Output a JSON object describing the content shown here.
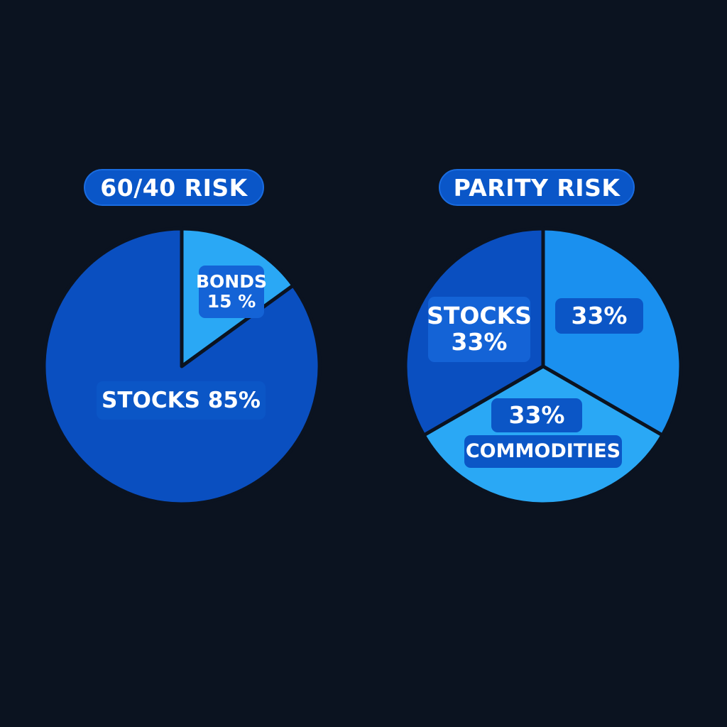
{
  "colors": {
    "background": "#0b1320",
    "dark_blue": "#0a4fc0",
    "light_blue": "#2aa8f5",
    "mid_blue": "#1a90ef",
    "label_box": "#0b56c6"
  },
  "chart_data": [
    {
      "type": "pie",
      "title": "60/40 RISK",
      "slices": [
        {
          "name": "BONDS",
          "label": "BONDS",
          "value_label": "15 %",
          "value": 15,
          "color": "#2aa8f5"
        },
        {
          "name": "STOCKS",
          "label": "STOCKS 85%",
          "value": 85,
          "color": "#0a4fc0"
        }
      ]
    },
    {
      "type": "pie",
      "title": "PARITY RISK",
      "slices": [
        {
          "name": "",
          "label": "33%",
          "value": 33,
          "color": "#1a90ef"
        },
        {
          "name": "COMMODITIES",
          "label": "33%",
          "sublabel": "COMMODITIES",
          "value": 33,
          "color": "#2aa8f5"
        },
        {
          "name": "STOCKS",
          "label": "STOCKS",
          "value_label": "33%",
          "value": 33,
          "color": "#0a4fc0"
        }
      ]
    }
  ]
}
